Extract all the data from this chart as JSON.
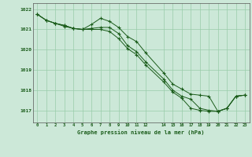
{
  "title": "Graphe pression niveau de la mer (hPa)",
  "bg_color": "#cce8d8",
  "line_color": "#1a5c1a",
  "grid_color": "#99ccaa",
  "xlim": [
    -0.5,
    23.5
  ],
  "ylim": [
    1016.4,
    1022.3
  ],
  "xticks": [
    0,
    1,
    2,
    3,
    4,
    5,
    6,
    7,
    8,
    9,
    10,
    11,
    12,
    14,
    15,
    16,
    17,
    18,
    19,
    20,
    21,
    22,
    23
  ],
  "yticks": [
    1017,
    1018,
    1019,
    1020,
    1021,
    1022
  ],
  "line1_x": [
    0,
    1,
    2,
    3,
    4,
    5,
    6,
    7,
    8,
    9,
    10,
    11,
    12,
    14,
    15,
    16,
    17,
    18,
    19,
    20,
    21,
    22,
    23
  ],
  "line1_y": [
    1021.75,
    1021.45,
    1021.3,
    1021.2,
    1021.05,
    1021.0,
    1021.25,
    1021.55,
    1021.4,
    1021.1,
    1020.65,
    1020.4,
    1019.85,
    1018.85,
    1018.3,
    1018.05,
    1017.8,
    1017.75,
    1017.7,
    1016.95,
    1017.1,
    1017.7,
    1017.75
  ],
  "line2_x": [
    0,
    1,
    2,
    3,
    4,
    5,
    6,
    7,
    8,
    9,
    10,
    11,
    12,
    14,
    15,
    16,
    17,
    18,
    19,
    20,
    21,
    22,
    23
  ],
  "line2_y": [
    1021.75,
    1021.45,
    1021.3,
    1021.2,
    1021.05,
    1021.0,
    1021.05,
    1021.1,
    1021.1,
    1020.8,
    1020.2,
    1019.9,
    1019.4,
    1018.55,
    1018.0,
    1017.7,
    1017.55,
    1017.1,
    1017.0,
    1016.95,
    1017.1,
    1017.7,
    1017.75
  ],
  "line3_x": [
    0,
    1,
    2,
    3,
    4,
    5,
    6,
    7,
    8,
    9,
    10,
    11,
    12,
    14,
    15,
    16,
    17,
    18,
    19,
    20,
    21,
    22,
    23
  ],
  "line3_y": [
    1021.75,
    1021.45,
    1021.3,
    1021.15,
    1021.05,
    1021.0,
    1021.0,
    1021.0,
    1020.9,
    1020.55,
    1020.05,
    1019.75,
    1019.25,
    1018.4,
    1017.9,
    1017.6,
    1017.1,
    1017.0,
    1016.95,
    1016.95,
    1017.1,
    1017.7,
    1017.75
  ]
}
